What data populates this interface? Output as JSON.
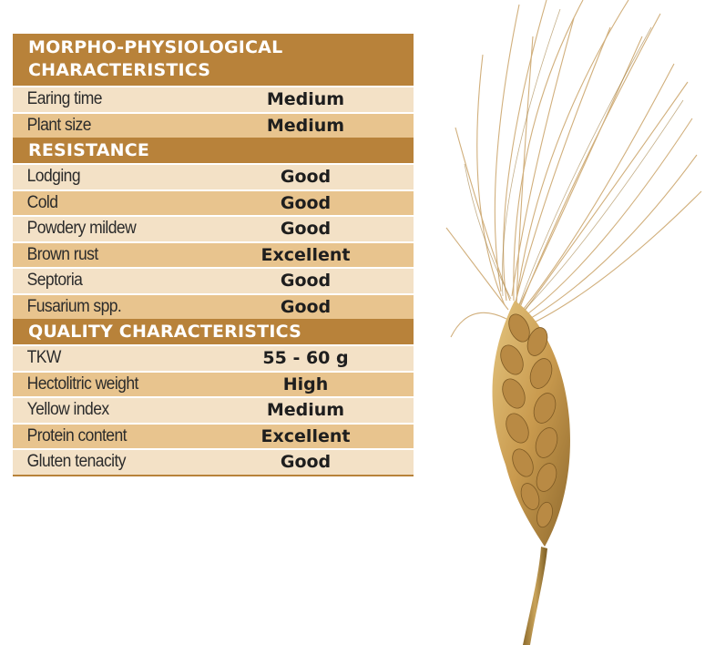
{
  "sections": [
    {
      "title": "MORPHO-PHYSIOLOGICAL CHARACTERISTICS",
      "rows": [
        {
          "label": "Earing time",
          "value": "Medium"
        },
        {
          "label": "Plant size",
          "value": "Medium"
        }
      ]
    },
    {
      "title": "RESISTANCE",
      "rows": [
        {
          "label": "Lodging",
          "value": "Good"
        },
        {
          "label": "Cold",
          "value": "Good"
        },
        {
          "label": "Powdery mildew",
          "value": "Good"
        },
        {
          "label": "Brown rust",
          "value": "Excellent"
        },
        {
          "label": "Septoria",
          "value": "Good"
        },
        {
          "label": "Fusarium spp.",
          "value": "Good"
        }
      ]
    },
    {
      "title": "QUALITY CHARACTERISTICS",
      "rows": [
        {
          "label": "TKW",
          "value": "55 - 60 g"
        },
        {
          "label": "Hectolitric weight",
          "value": "High"
        },
        {
          "label": "Yellow index",
          "value": "Medium"
        },
        {
          "label": "Protein content",
          "value": "Excellent"
        },
        {
          "label": "Gluten tenacity",
          "value": "Good"
        }
      ]
    }
  ],
  "colors": {
    "header": "#b8823a",
    "row_light": "#f3e1c6",
    "row_dark": "#e8c48e"
  },
  "image": {
    "icon": "wheat-ear-icon"
  }
}
